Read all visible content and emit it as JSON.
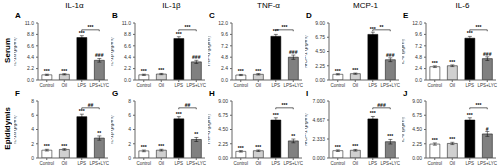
{
  "chart_data": [
    {
      "type": "bar",
      "title": "IL-1α",
      "row_label": "Serum",
      "panel": "A",
      "ylabel": "IL-1α (pg/ml)",
      "categories": [
        "Control",
        "Oil",
        "LPS",
        "LPS+LYC"
      ],
      "values": [
        1.0,
        1.1,
        8.2,
        3.8
      ],
      "errors": [
        0.12,
        0.12,
        0.35,
        0.35
      ],
      "colors": [
        "#ffffff",
        "#d0d0d0",
        "#000000",
        "#808080"
      ],
      "ylim": [
        0,
        11
      ],
      "yticks": [
        {
          "value": 0,
          "label": "0.0"
        },
        2.2,
        4.4,
        6.6,
        8.8,
        {
          "value": 11,
          "label": "11.0"
        }
      ],
      "annotations": [
        {
          "text": "***",
          "category": "Control"
        },
        {
          "text": "***",
          "category": "Oil"
        },
        {
          "text": "***",
          "category": "LPS"
        },
        {
          "text": "###",
          "category": "LPS+LYC"
        },
        {
          "text": "***",
          "categories": [
            "LPS",
            "LPS+LYC"
          ]
        }
      ]
    },
    {
      "type": "bar",
      "title": "IL-1β",
      "panel": "B",
      "ylabel": "IL-1β (pg/ml)",
      "categories": [
        "Control",
        "Oil",
        "LPS",
        "LPS+LYC"
      ],
      "values": [
        1.0,
        1.15,
        8.0,
        3.5
      ],
      "errors": [
        0.12,
        0.12,
        0.35,
        0.3
      ],
      "colors": [
        "#ffffff",
        "#d0d0d0",
        "#000000",
        "#808080"
      ],
      "ylim": [
        0,
        11
      ],
      "yticks": [
        {
          "value": 0,
          "label": "0.0"
        },
        2.2,
        4.4,
        6.6,
        8.8,
        {
          "value": 11,
          "label": "11.0"
        }
      ],
      "annotations": [
        {
          "text": "***",
          "category": "Control"
        },
        {
          "text": "***",
          "category": "Oil"
        },
        {
          "text": "***",
          "category": "LPS"
        },
        {
          "text": "###",
          "category": "LPS+LYC"
        },
        {
          "text": "***",
          "categories": [
            "LPS",
            "LPS+LYC"
          ]
        }
      ]
    },
    {
      "type": "bar",
      "title": "TNF-α",
      "panel": "C",
      "ylabel": "TNF-α (pg/ml)",
      "categories": [
        "Control",
        "Oil",
        "LPS",
        "LPS+LYC"
      ],
      "values": [
        1.05,
        1.2,
        9.2,
        4.8
      ],
      "errors": [
        0.12,
        0.15,
        0.4,
        0.45
      ],
      "colors": [
        "#ffffff",
        "#d0d0d0",
        "#000000",
        "#808080"
      ],
      "ylim": [
        0,
        12
      ],
      "yticks": [
        {
          "value": 0,
          "label": "0.0"
        },
        2.4,
        4.8,
        7.2,
        9.6,
        {
          "value": 12,
          "label": "12.0"
        }
      ],
      "annotations": [
        {
          "text": "***",
          "category": "Control"
        },
        {
          "text": "***",
          "category": "Oil"
        },
        {
          "text": "***",
          "category": "LPS"
        },
        {
          "text": "###",
          "category": "LPS+LYC"
        },
        {
          "text": "***",
          "categories": [
            "LPS",
            "LPS+LYC"
          ]
        }
      ]
    },
    {
      "type": "bar",
      "title": "MCP-1",
      "panel": "D",
      "ylabel": "MCP-1 (pg/ml)",
      "categories": [
        "Control",
        "Oil",
        "LPS",
        "LPS+LYC"
      ],
      "values": [
        0.9,
        1.0,
        7.2,
        3.2
      ],
      "errors": [
        0.1,
        0.1,
        0.35,
        0.3
      ],
      "colors": [
        "#ffffff",
        "#d0d0d0",
        "#000000",
        "#808080"
      ],
      "ylim": [
        0,
        9
      ],
      "yticks": [
        {
          "value": 0,
          "label": "0.00"
        },
        2.25,
        {
          "value": 4.5,
          "label": "4.50"
        },
        6.75,
        {
          "value": 9,
          "label": "9.00"
        }
      ],
      "annotations": [
        {
          "text": "***",
          "category": "Control"
        },
        {
          "text": "***",
          "category": "Oil"
        },
        {
          "text": "***",
          "category": "LPS"
        },
        {
          "text": "###",
          "category": "LPS+LYC"
        },
        {
          "text": "**",
          "categories": [
            "LPS",
            "LPS+LYC"
          ]
        }
      ]
    },
    {
      "type": "bar",
      "title": "IL-6",
      "panel": "E",
      "ylabel": "IL-6 (pg/ml)",
      "categories": [
        "Control",
        "Oil",
        "LPS",
        "LPS+LYC"
      ],
      "values": [
        2.8,
        3.0,
        8.8,
        4.5
      ],
      "errors": [
        0.18,
        0.18,
        0.38,
        0.38
      ],
      "colors": [
        "#ffffff",
        "#d0d0d0",
        "#000000",
        "#808080"
      ],
      "ylim": [
        0,
        12
      ],
      "yticks": [
        {
          "value": 0,
          "label": "0.0"
        },
        2.4,
        4.8,
        7.2,
        9.6,
        {
          "value": 12,
          "label": "12.0"
        }
      ],
      "annotations": [
        {
          "text": "***",
          "category": "Control"
        },
        {
          "text": "***",
          "category": "Oil"
        },
        {
          "text": "***",
          "category": "LPS"
        },
        {
          "text": "###",
          "category": "LPS+LYC"
        },
        {
          "text": "***",
          "categories": [
            "LPS",
            "LPS+LYC"
          ]
        }
      ]
    },
    {
      "type": "bar",
      "row_label": "Epididymis",
      "panel": "F",
      "ylabel": "IL-1α (pg/ml)",
      "categories": [
        "Control",
        "Oil",
        "LPS",
        "LPS+LYC"
      ],
      "values": [
        1.1,
        1.2,
        5.8,
        2.8
      ],
      "errors": [
        0.12,
        0.12,
        0.35,
        0.3
      ],
      "colors": [
        "#ffffff",
        "#d0d0d0",
        "#000000",
        "#808080"
      ],
      "ylim": [
        0,
        8
      ],
      "yticks": [
        0,
        2,
        4,
        6,
        8
      ],
      "annotations": [
        {
          "text": "***",
          "category": "Control"
        },
        {
          "text": "***",
          "category": "Oil"
        },
        {
          "text": "***",
          "category": "LPS"
        },
        {
          "text": "**",
          "category": "LPS+LYC"
        },
        {
          "text": "##",
          "categories": [
            "LPS",
            "LPS+LYC"
          ]
        }
      ]
    },
    {
      "type": "bar",
      "panel": "G",
      "ylabel": "IL-1β (pg/ml)",
      "categories": [
        "Control",
        "Oil",
        "LPS",
        "LPS+LYC"
      ],
      "values": [
        1.0,
        1.1,
        5.5,
        2.6
      ],
      "errors": [
        0.12,
        0.12,
        0.3,
        0.28
      ],
      "colors": [
        "#ffffff",
        "#d0d0d0",
        "#000000",
        "#808080"
      ],
      "ylim": [
        0,
        8
      ],
      "yticks": [
        0,
        2,
        4,
        6,
        8
      ],
      "annotations": [
        {
          "text": "***",
          "category": "Control"
        },
        {
          "text": "***",
          "category": "Oil"
        },
        {
          "text": "***",
          "category": "LPS"
        },
        {
          "text": "**",
          "category": "LPS+LYC"
        },
        {
          "text": "##",
          "categories": [
            "LPS",
            "LPS+LYC"
          ]
        }
      ]
    },
    {
      "type": "bar",
      "panel": "H",
      "ylabel": "TNF-α (pg/ml)",
      "categories": [
        "Control",
        "Oil",
        "LPS",
        "LPS+LYC"
      ],
      "values": [
        1.05,
        1.15,
        6.0,
        2.7
      ],
      "errors": [
        0.12,
        0.12,
        0.35,
        0.3
      ],
      "colors": [
        "#ffffff",
        "#d0d0d0",
        "#000000",
        "#808080"
      ],
      "ylim": [
        0,
        9
      ],
      "yticks": [
        {
          "value": 0,
          "label": "0.00"
        },
        2.25,
        {
          "value": 4.5,
          "label": "4.50"
        },
        6.75,
        {
          "value": 9,
          "label": "9.00"
        }
      ],
      "annotations": [
        {
          "text": "***",
          "category": "Control"
        },
        {
          "text": "***",
          "category": "Oil"
        },
        {
          "text": "***",
          "category": "LPS"
        },
        {
          "text": "**",
          "category": "LPS+LYC"
        },
        {
          "text": "***",
          "categories": [
            "LPS",
            "LPS+LYC"
          ]
        }
      ]
    },
    {
      "type": "bar",
      "panel": "I",
      "ylabel": "MCP-1 (pg/ml)",
      "categories": [
        "Control",
        "Oil",
        "LPS",
        "LPS+LYC"
      ],
      "values": [
        0.9,
        0.95,
        4.8,
        2.0
      ],
      "errors": [
        0.1,
        0.1,
        0.3,
        0.28
      ],
      "colors": [
        "#ffffff",
        "#d0d0d0",
        "#000000",
        "#808080"
      ],
      "ylim": [
        0,
        7
      ],
      "yticks": [
        {
          "value": 0,
          "label": "0.000"
        },
        {
          "value": 2.3333333333333335,
          "label": "2.333"
        },
        {
          "value": 4.666666666666667,
          "label": "4.667"
        },
        {
          "value": 7,
          "label": "7.000"
        }
      ],
      "annotations": [
        {
          "text": "***",
          "category": "Control"
        },
        {
          "text": "***",
          "category": "Oil"
        },
        {
          "text": "***",
          "category": "LPS"
        },
        {
          "text": "***",
          "category": "LPS+LYC"
        },
        {
          "text": "###",
          "categories": [
            "LPS",
            "LPS+LYC"
          ]
        }
      ]
    },
    {
      "type": "bar",
      "panel": "J",
      "ylabel": "IL-6 (pg/ml)",
      "categories": [
        "Control",
        "Oil",
        "LPS",
        "LPS+LYC"
      ],
      "values": [
        2.2,
        2.3,
        6.0,
        3.8
      ],
      "errors": [
        0.18,
        0.18,
        0.35,
        0.38
      ],
      "colors": [
        "#ffffff",
        "#d0d0d0",
        "#000000",
        "#808080"
      ],
      "ylim": [
        0,
        9
      ],
      "yticks": [
        {
          "value": 0,
          "label": "0.00"
        },
        2.25,
        {
          "value": 4.5,
          "label": "4.50"
        },
        6.75,
        {
          "value": 9,
          "label": "9.00"
        }
      ],
      "annotations": [
        {
          "text": "***",
          "category": "Control"
        },
        {
          "text": "***",
          "category": "Oil"
        },
        {
          "text": "***",
          "category": "LPS"
        },
        {
          "text": "#",
          "category": "LPS+LYC"
        },
        {
          "text": "***",
          "categories": [
            "LPS",
            "LPS+LYC"
          ]
        }
      ]
    }
  ]
}
